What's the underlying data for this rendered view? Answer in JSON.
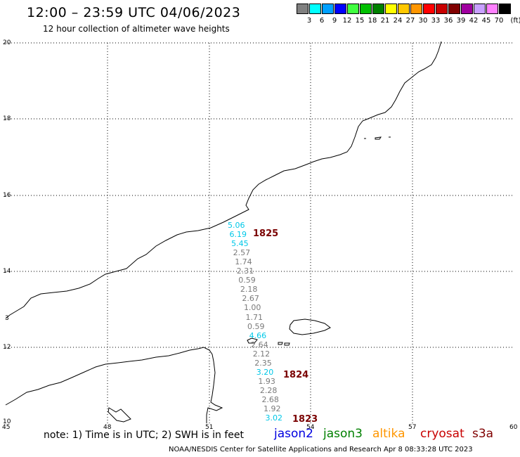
{
  "title": "12:00 – 23:59 UTC 04/06/2023",
  "subtitle": "12 hour collection of altimeter wave heights",
  "legend": {
    "unit": "(ft)",
    "bins": [
      {
        "label": "3",
        "color": "#808080"
      },
      {
        "label": "6",
        "color": "#00ffff"
      },
      {
        "label": "9",
        "color": "#00a0ff"
      },
      {
        "label": "12",
        "color": "#0000ff"
      },
      {
        "label": "15",
        "color": "#40ff40"
      },
      {
        "label": "18",
        "color": "#00c000"
      },
      {
        "label": "21",
        "color": "#008000"
      },
      {
        "label": "24",
        "color": "#ffff00"
      },
      {
        "label": "27",
        "color": "#ffc800"
      },
      {
        "label": "30",
        "color": "#ff9600"
      },
      {
        "label": "33",
        "color": "#ff0000"
      },
      {
        "label": "36",
        "color": "#c80000"
      },
      {
        "label": "39",
        "color": "#800000"
      },
      {
        "label": "42",
        "color": "#a000a0"
      },
      {
        "label": "45",
        "color": "#c8a0ff"
      },
      {
        "label": "70",
        "color": "#ff80ff"
      },
      {
        "label": "",
        "color": "#000000"
      }
    ]
  },
  "map": {
    "lat_labels": [
      "20",
      "18",
      "16",
      "14",
      "12",
      "10"
    ],
    "lon_labels": [
      "45",
      "48",
      "51",
      "54",
      "57",
      "60"
    ],
    "edge_label": "3",
    "wave_heights": [
      {
        "v": "5.06",
        "c": "cyan"
      },
      {
        "v": "6.19",
        "c": "cyan"
      },
      {
        "v": "5.45",
        "c": "cyan"
      },
      {
        "v": "2.57",
        "c": "grey"
      },
      {
        "v": "1.74",
        "c": "grey"
      },
      {
        "v": "2.31",
        "c": "grey"
      },
      {
        "v": "0.59",
        "c": "grey"
      },
      {
        "v": "2.18",
        "c": "grey"
      },
      {
        "v": "2.67",
        "c": "grey"
      },
      {
        "v": "1.00",
        "c": "grey"
      },
      {
        "v": "1.71",
        "c": "grey"
      },
      {
        "v": "0.59",
        "c": "grey"
      },
      {
        "v": "4.66",
        "c": "cyan"
      },
      {
        "v": "2.64",
        "c": "grey"
      },
      {
        "v": "2.12",
        "c": "grey"
      },
      {
        "v": "2.35",
        "c": "grey"
      },
      {
        "v": "3.20",
        "c": "cyan"
      },
      {
        "v": "1.93",
        "c": "grey"
      },
      {
        "v": "2.28",
        "c": "grey"
      },
      {
        "v": "2.68",
        "c": "grey"
      },
      {
        "v": "1.92",
        "c": "grey"
      },
      {
        "v": "3.02",
        "c": "cyan"
      }
    ],
    "pass_times": [
      "1825",
      "1824",
      "1823"
    ]
  },
  "footer": {
    "note": "note: 1) Time is in UTC; 2) SWH is in feet",
    "satellites": [
      {
        "name": "jason2",
        "color": "#0000e0"
      },
      {
        "name": "jason3",
        "color": "#008000"
      },
      {
        "name": "altika",
        "color": "#ff9600"
      },
      {
        "name": "cryosat",
        "color": "#c80000"
      },
      {
        "name": "s3a",
        "color": "#800000"
      }
    ],
    "credit": "NOAA/NESDIS Center for Satellite Applications and Research    Apr  8 08:33:28 UTC 2023"
  }
}
